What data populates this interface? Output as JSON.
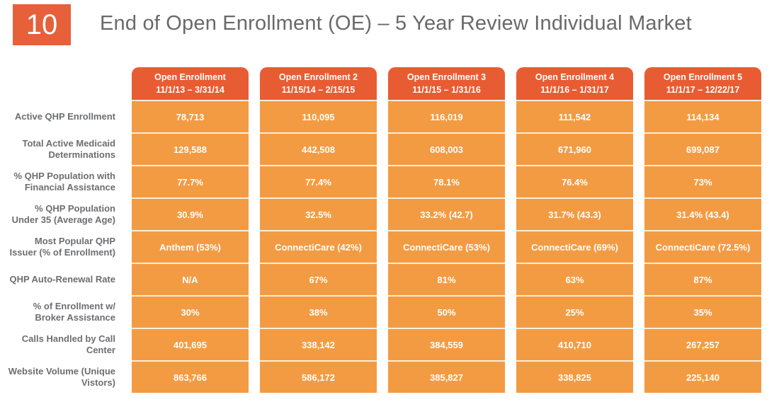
{
  "slide": {
    "number": "10",
    "title": "End of Open Enrollment (OE) – 5 Year Review Individual Market"
  },
  "colors": {
    "accent": "#E6603A",
    "header_orange": "#E85C33",
    "cell_orange": "#F39B43",
    "divider_cream": "#F9EFDB",
    "label_gray": "#6D6E71",
    "title_gray": "#696969"
  },
  "chart_data": {
    "type": "table",
    "title": "End of Open Enrollment (OE) – 5 Year Review Individual Market",
    "columns": [
      {
        "label": "Open Enrollment",
        "dates": "11/1/13 – 3/31/14"
      },
      {
        "label": "Open Enrollment 2",
        "dates": "11/15/14 – 2/15/15"
      },
      {
        "label": "Open Enrollment 3",
        "dates": "11/1/15 – 1/31/16"
      },
      {
        "label": "Open Enrollment 4",
        "dates": "11/1/16 – 1/31/17"
      },
      {
        "label": "Open Enrollment 5",
        "dates": "11/1/17 – 12/22/17"
      }
    ],
    "rows": [
      {
        "label": "Active QHP Enrollment",
        "values": [
          "78,713",
          "110,095",
          "116,019",
          "111,542",
          "114,134"
        ]
      },
      {
        "label": "Total Active Medicaid Determinations",
        "values": [
          "129,588",
          "442,508",
          "608,003",
          "671,960",
          "699,087"
        ]
      },
      {
        "label": "% QHP Population with Financial Assistance",
        "values": [
          "77.7%",
          "77.4%",
          "78.1%",
          "76.4%",
          "73%"
        ]
      },
      {
        "label": "% QHP Population Under 35 (Average Age)",
        "values": [
          "30.9%",
          "32.5%",
          "33.2% (42.7)",
          "31.7% (43.3)",
          "31.4% (43.4)"
        ]
      },
      {
        "label": "Most Popular QHP Issuer (% of Enrollment)",
        "values": [
          "Anthem (53%)",
          "ConnectiCare (42%)",
          "ConnectiCare (53%)",
          "ConnectiCare (69%)",
          "ConnectiCare (72.5%)"
        ]
      },
      {
        "label": "QHP Auto-Renewal Rate",
        "values": [
          "N/A",
          "67%",
          "81%",
          "63%",
          "87%"
        ]
      },
      {
        "label": "% of Enrollment w/ Broker Assistance",
        "values": [
          "30%",
          "38%",
          "50%",
          "25%",
          "35%"
        ]
      },
      {
        "label": "Calls Handled by Call Center",
        "values": [
          "401,695",
          "338,142",
          "384,559",
          "410,710",
          "267,257"
        ]
      },
      {
        "label": "Website Volume (Unique Vistors)",
        "values": [
          "863,766",
          "586,172",
          "385,827",
          "338,825",
          "225,140"
        ]
      }
    ]
  }
}
